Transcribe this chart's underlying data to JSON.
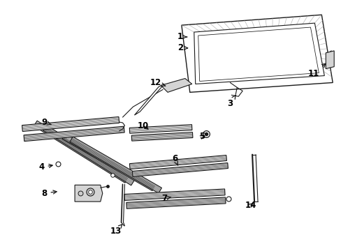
{
  "bg_color": "#ffffff",
  "fig_width": 4.89,
  "fig_height": 3.6,
  "dpi": 100,
  "line_color": "#1a1a1a",
  "arrow_color": "#1a1a1a",
  "fill_light": "#e8e8e8",
  "fill_mid": "#d4d4d4",
  "hatch_color": "#999999"
}
